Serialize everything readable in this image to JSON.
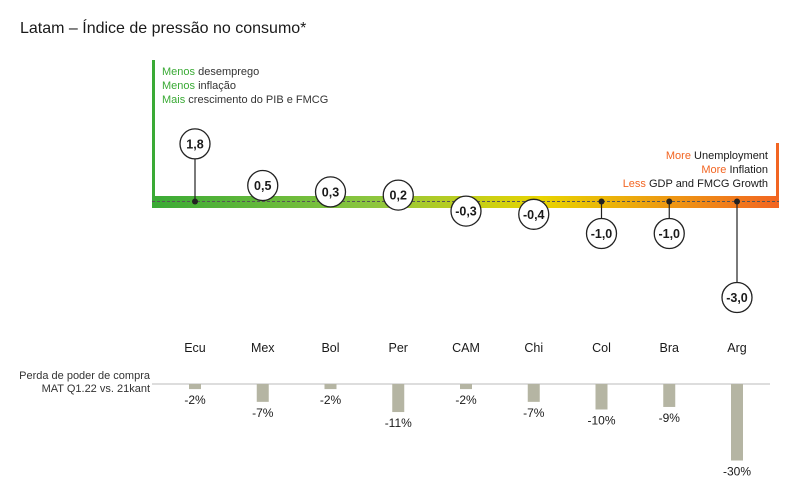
{
  "title": "Latam – Índice de pressão no consumo*",
  "legend_left": [
    {
      "hl": "Menos",
      "rest": " desemprego"
    },
    {
      "hl": "Menos",
      "rest": " inflação"
    },
    {
      "hl": "Mais",
      "rest": " crescimento do PIB e FMCG"
    }
  ],
  "legend_right": [
    {
      "hl": "More",
      "rest": " Unemployment"
    },
    {
      "hl": "More",
      "rest": " Inflation"
    },
    {
      "hl": "Less",
      "rest": " GDP and FMCG Growth"
    }
  ],
  "bottom_label": [
    "Perda de poder de compra",
    "MAT Q1.22 vs. 21kant"
  ],
  "colors": {
    "good": "#3aaa35",
    "mid": "#e8d400",
    "bad": "#f26522",
    "bar": "#b5b5a3",
    "text": "#1a1a1a"
  },
  "chart_data": [
    {
      "type": "scatter",
      "title": "Latam – Índice de pressão no consumo*",
      "categories": [
        "Ecu",
        "Mex",
        "Bol",
        "Per",
        "CAM",
        "Chi",
        "Col",
        "Bra",
        "Arg"
      ],
      "values": [
        1.8,
        0.5,
        0.3,
        0.2,
        -0.3,
        -0.4,
        -1.0,
        -1.0,
        -3.0
      ],
      "labels": [
        "1,8",
        "0,5",
        "0,3",
        "0,2",
        "-0,3",
        "-0,4",
        "-1,0",
        "-1,0",
        "-3,0"
      ]
    },
    {
      "type": "bar",
      "title": "Perda de poder de compra MAT Q1.22 vs. 21kant",
      "categories": [
        "Ecu",
        "Mex",
        "Bol",
        "Per",
        "CAM",
        "Chi",
        "Col",
        "Bra",
        "Arg"
      ],
      "values": [
        -2,
        -7,
        -2,
        -11,
        -2,
        -7,
        -10,
        -9,
        -30
      ],
      "labels": [
        "-2%",
        "-7%",
        "-2%",
        "-11%",
        "-2%",
        "-7%",
        "-10%",
        "-9%",
        "-30%"
      ]
    }
  ]
}
